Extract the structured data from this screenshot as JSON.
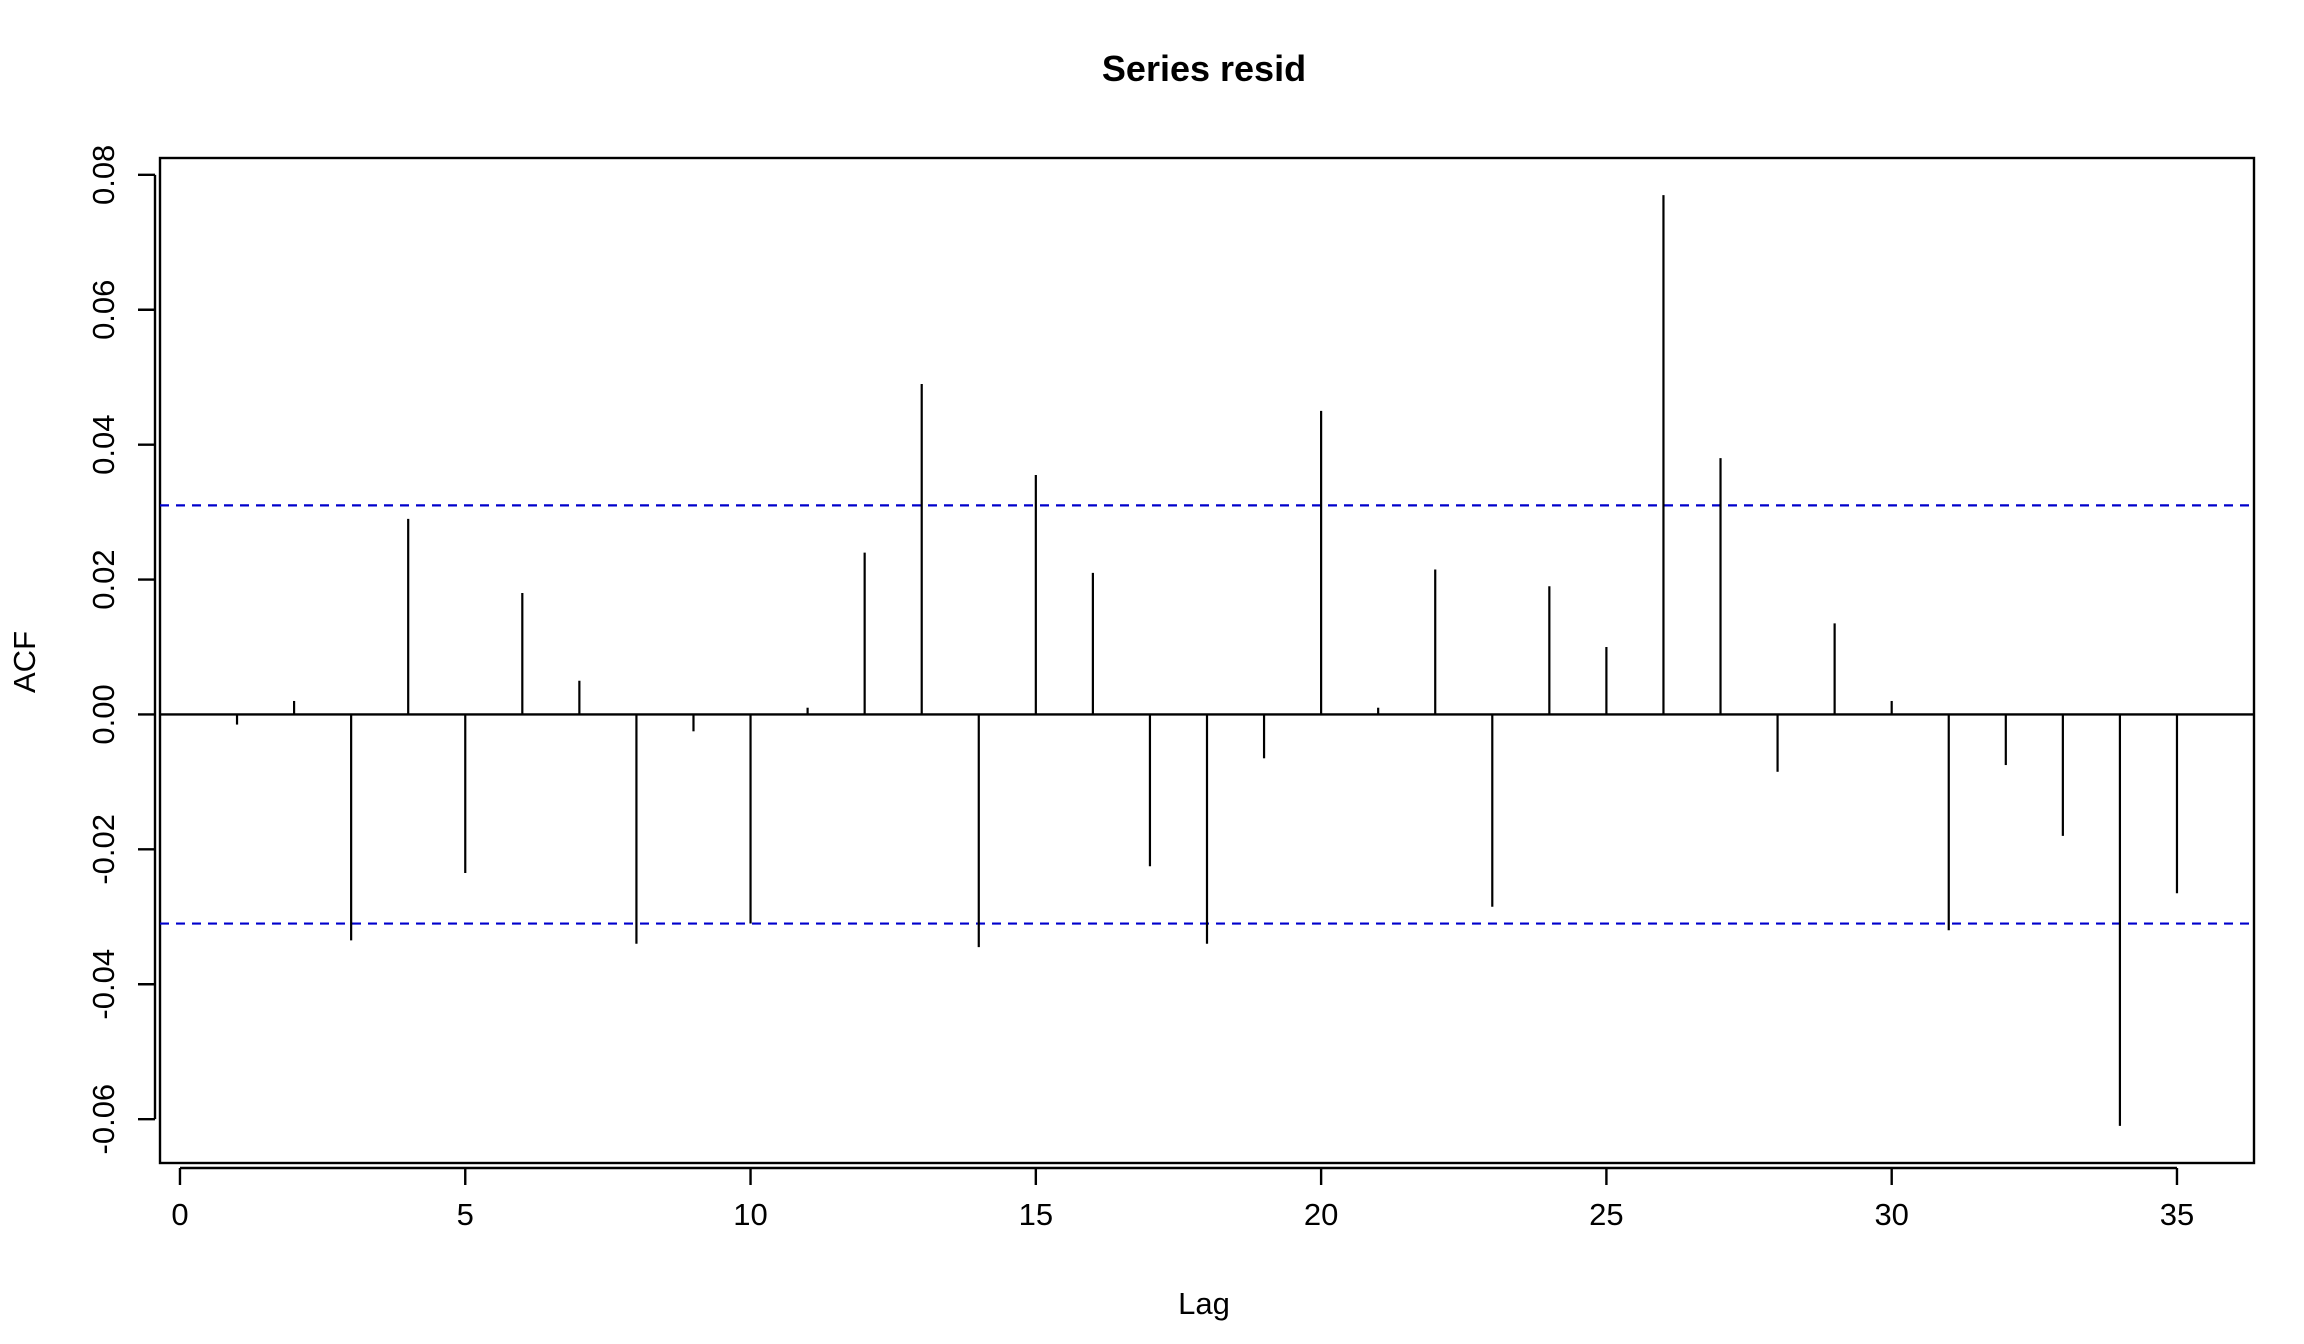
{
  "chart_data": {
    "type": "bar",
    "title": "Series  resid",
    "xlabel": "Lag",
    "ylabel": "ACF",
    "xlim": [
      -0.35,
      36.35
    ],
    "ylim": [
      -0.0665,
      0.0825
    ],
    "x_ticks": [
      0,
      5,
      10,
      15,
      20,
      25,
      30,
      35
    ],
    "y_ticks": [
      "-0.06",
      "-0.04",
      "-0.02",
      "0.00",
      "0.02",
      "0.04",
      "0.06",
      "0.08"
    ],
    "confidence_band": [
      -0.031,
      0.031
    ],
    "grid": false,
    "legend": "none",
    "colors": {
      "bars": "#000000",
      "confidence": "#0000cc",
      "zero_line": "#000000"
    },
    "lags": [
      1,
      2,
      3,
      4,
      5,
      6,
      7,
      8,
      9,
      10,
      11,
      12,
      13,
      14,
      15,
      16,
      17,
      18,
      19,
      20,
      21,
      22,
      23,
      24,
      25,
      26,
      27,
      28,
      29,
      30,
      31,
      32,
      33,
      34,
      35
    ],
    "acf": [
      -0.0015,
      0.002,
      -0.0335,
      0.029,
      -0.0235,
      0.018,
      0.005,
      -0.034,
      -0.0025,
      -0.031,
      0.001,
      0.024,
      0.049,
      -0.0345,
      0.0355,
      0.021,
      -0.0225,
      -0.034,
      -0.0065,
      0.045,
      0.001,
      0.0215,
      -0.0285,
      0.019,
      0.01,
      0.077,
      0.038,
      -0.0085,
      0.0135,
      0.002,
      -0.032,
      -0.0075,
      -0.018,
      -0.061,
      -0.0265
    ]
  }
}
